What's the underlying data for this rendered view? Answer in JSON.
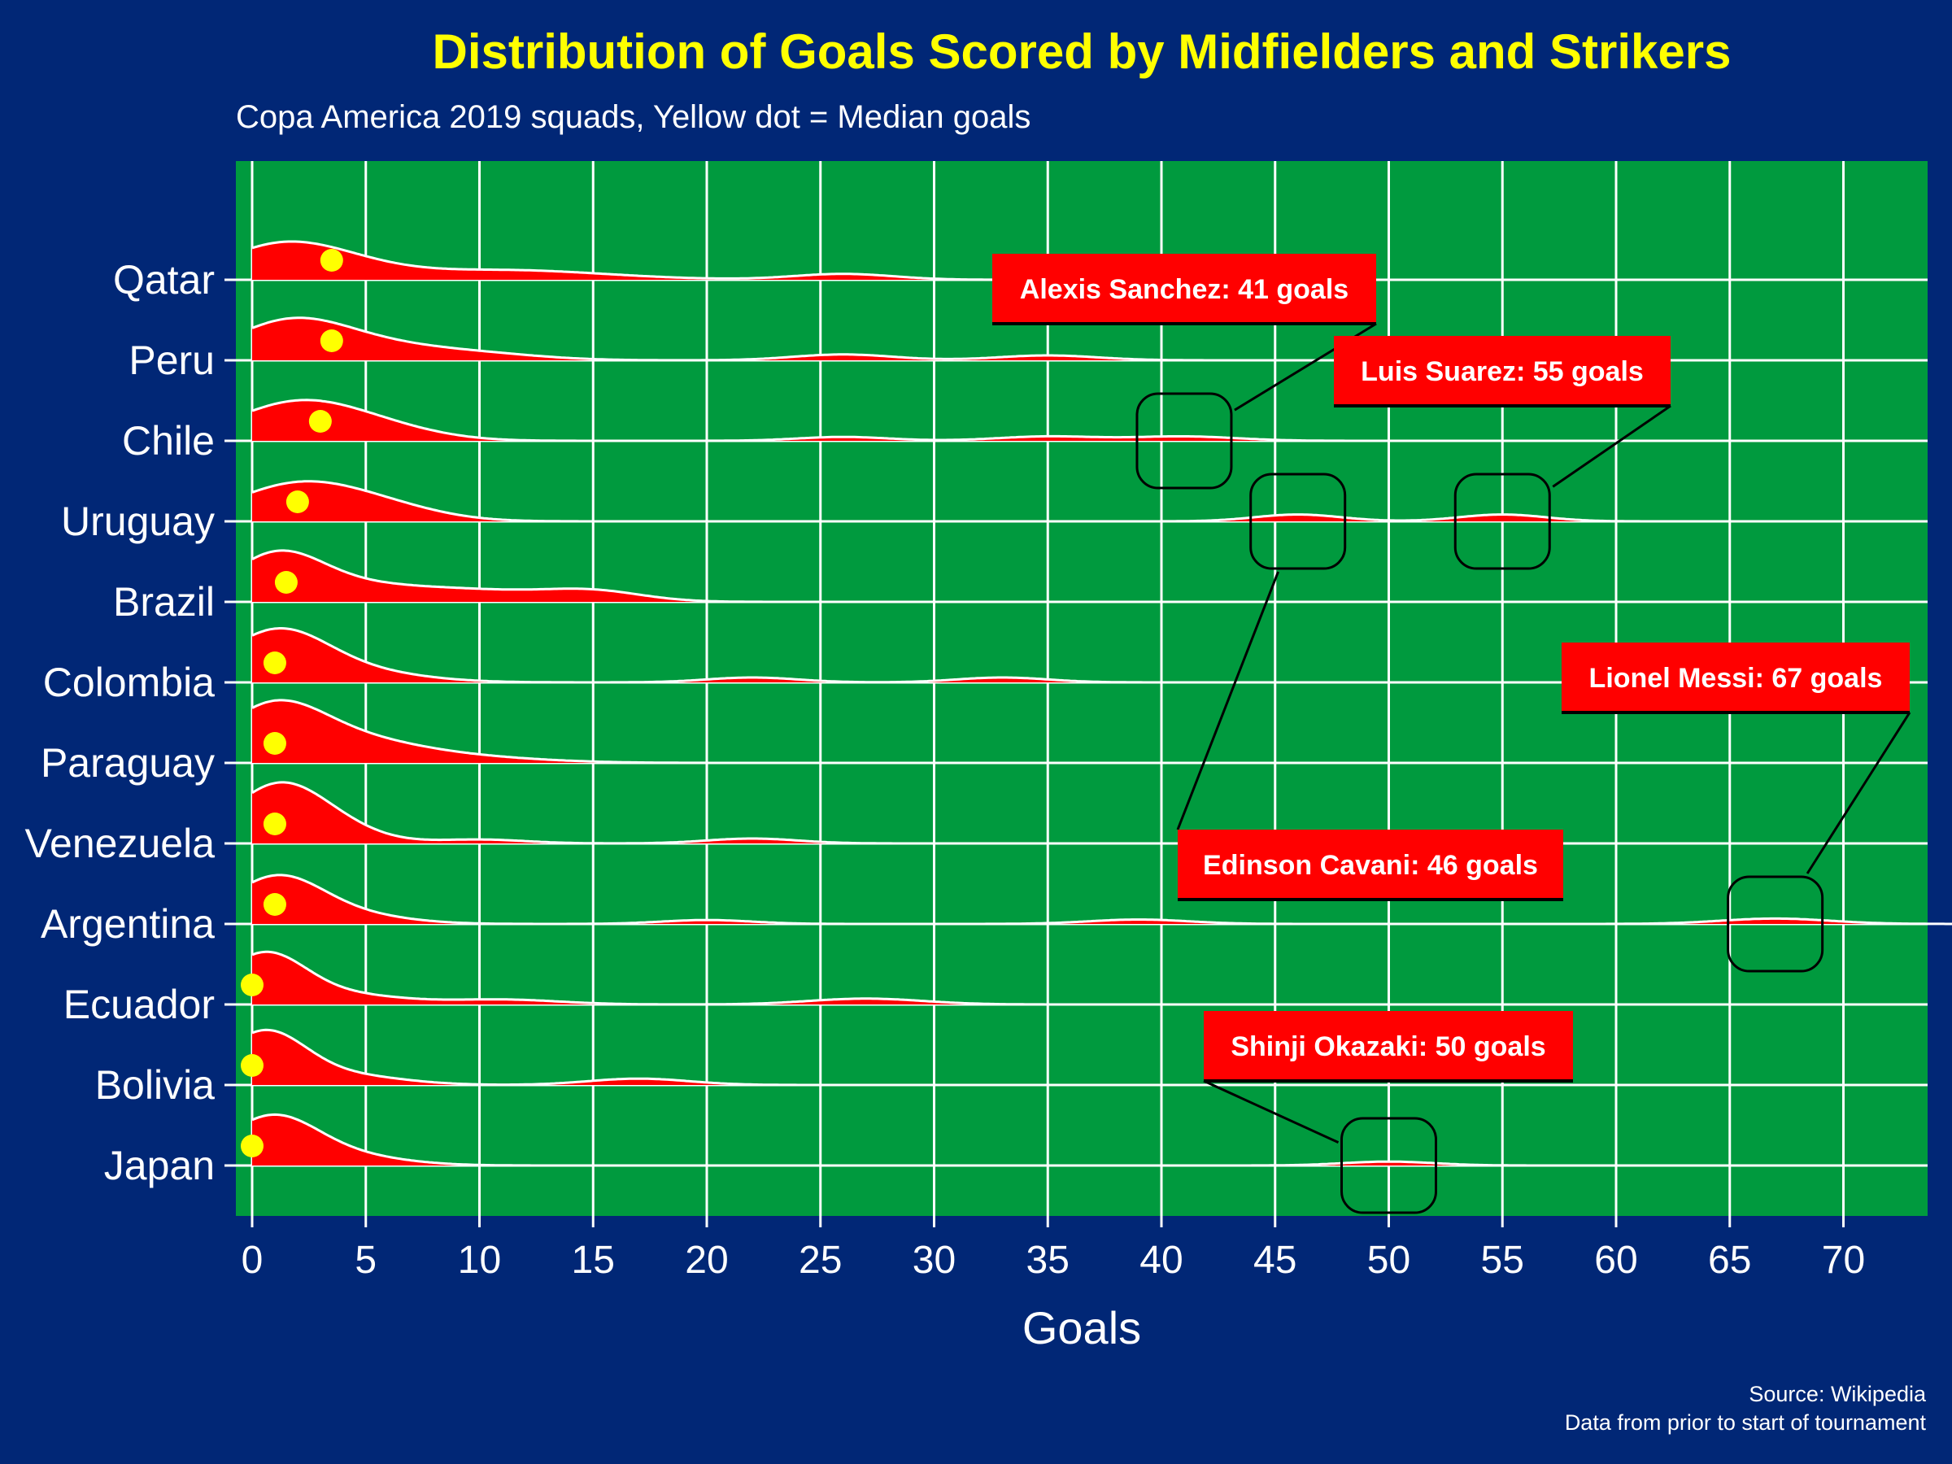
{
  "chart_data": {
    "type": "ridgeline",
    "title": "Distribution of Goals Scored by Midfielders and Strikers",
    "subtitle": "Copa America 2019 squads, Yellow dot = Median goals",
    "xlabel": "Goals",
    "ylabel": "",
    "xlim": [
      -0.7,
      73.7
    ],
    "xticks": [
      0,
      5,
      10,
      15,
      20,
      25,
      30,
      35,
      40,
      45,
      50,
      55,
      60,
      65,
      70
    ],
    "grid": true,
    "caption": [
      "Source: Wikipedia",
      "Data from prior to start of tournament"
    ],
    "colors": {
      "background": "#012776",
      "panel": "#009a3e",
      "ridge_fill": "#ff0000",
      "ridge_line": "#ffffff",
      "median_dot": "#ffff00",
      "grid": "#ffffff",
      "title": "#ffff00",
      "annotation_fill": "#ff0000"
    },
    "series": [
      {
        "name": "Qatar",
        "median": 3.5,
        "ridges": [
          [
            1,
            2.5,
            0.62
          ],
          [
            4,
            2.5,
            0.25
          ],
          [
            11,
            4.5,
            0.2
          ],
          [
            26,
            2.2,
            0.12
          ]
        ]
      },
      {
        "name": "Peru",
        "median": 3.5,
        "ridges": [
          [
            1.5,
            2.5,
            0.7
          ],
          [
            5,
            3,
            0.3
          ],
          [
            10,
            2.8,
            0.12
          ],
          [
            26,
            2.2,
            0.12
          ],
          [
            35,
            2.2,
            0.1
          ]
        ]
      },
      {
        "name": "Chile",
        "median": 3,
        "ridges": [
          [
            2,
            2.8,
            0.78
          ],
          [
            6,
            2.5,
            0.18
          ],
          [
            26,
            2,
            0.08
          ],
          [
            35,
            2.2,
            0.09
          ],
          [
            41,
            2.3,
            0.09
          ]
        ]
      },
      {
        "name": "Uruguay",
        "median": 2,
        "ridges": [
          [
            2,
            2.8,
            0.75
          ],
          [
            6,
            2.5,
            0.22
          ],
          [
            46,
            1.9,
            0.14
          ],
          [
            55,
            1.9,
            0.14
          ]
        ]
      },
      {
        "name": "Brazil",
        "median": 1.5,
        "ridges": [
          [
            1,
            2,
            0.9
          ],
          [
            4,
            2.5,
            0.25
          ],
          [
            9,
            3.5,
            0.25
          ],
          [
            15,
            2.2,
            0.2
          ]
        ]
      },
      {
        "name": "Colombia",
        "median": 1,
        "ridges": [
          [
            1,
            2.2,
            0.95
          ],
          [
            4,
            3,
            0.25
          ],
          [
            22,
            2,
            0.1
          ],
          [
            33,
            2,
            0.1
          ]
        ]
      },
      {
        "name": "Paraguay",
        "median": 1,
        "ridges": [
          [
            0.8,
            2.2,
            1.0
          ],
          [
            4,
            3,
            0.45
          ],
          [
            9,
            3.5,
            0.12
          ]
        ]
      },
      {
        "name": "Venezuela",
        "median": 1,
        "ridges": [
          [
            1,
            2,
            1.1
          ],
          [
            3.5,
            2,
            0.3
          ],
          [
            10,
            2,
            0.08
          ],
          [
            22,
            2,
            0.1
          ]
        ]
      },
      {
        "name": "Argentina",
        "median": 1,
        "ridges": [
          [
            1,
            2,
            0.9
          ],
          [
            4,
            2.5,
            0.2
          ],
          [
            20,
            2,
            0.08
          ],
          [
            39,
            2.2,
            0.09
          ],
          [
            67,
            2.4,
            0.11
          ]
        ]
      },
      {
        "name": "Ecuador",
        "median": 0,
        "ridges": [
          [
            0.5,
            1.8,
            1.0
          ],
          [
            4,
            2.5,
            0.2
          ],
          [
            11,
            2.5,
            0.1
          ],
          [
            27,
            2.5,
            0.12
          ]
        ]
      },
      {
        "name": "Bolivia",
        "median": 0,
        "ridges": [
          [
            0.5,
            1.8,
            1.05
          ],
          [
            4,
            2.5,
            0.2
          ],
          [
            17,
            2.2,
            0.13
          ]
        ]
      },
      {
        "name": "Japan",
        "median": 0,
        "ridges": [
          [
            0.8,
            2,
            0.95
          ],
          [
            4,
            2.5,
            0.2
          ],
          [
            50,
            2,
            0.08
          ]
        ]
      }
    ],
    "annotations": [
      {
        "text": "Alexis Sanchez: 41 goals",
        "player_goals": 41,
        "team": "Chile"
      },
      {
        "text": "Luis Suarez: 55 goals",
        "player_goals": 55,
        "team": "Uruguay"
      },
      {
        "text": "Edinson Cavani: 46 goals",
        "player_goals": 46,
        "team": "Uruguay"
      },
      {
        "text": "Lionel Messi: 67 goals",
        "player_goals": 67,
        "team": "Argentina"
      },
      {
        "text": "Shinji Okazaki: 50 goals",
        "player_goals": 50,
        "team": "Japan"
      }
    ]
  }
}
